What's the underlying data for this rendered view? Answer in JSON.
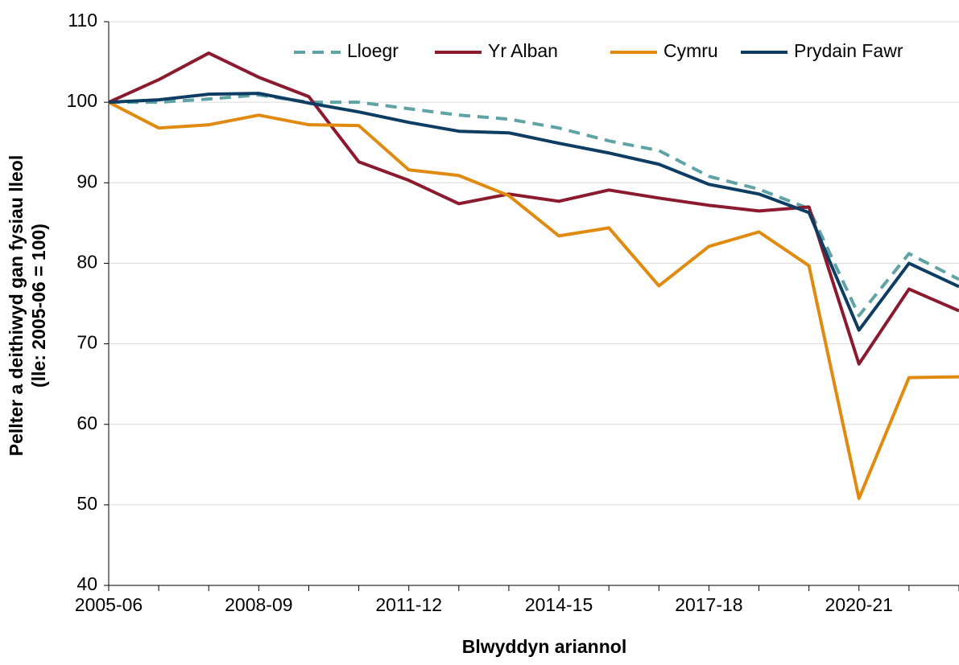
{
  "chart_data": {
    "type": "line",
    "x_label": "Blwyddyn ariannol",
    "y_label": [
      "Pellter a deithiwyd gan fysiau lleol",
      "(lle: 2005-06 = 100)"
    ],
    "categories": [
      "2005-06",
      null,
      null,
      "2008-09",
      null,
      null,
      "2011-12",
      null,
      null,
      "2014-15",
      null,
      null,
      "2017-18",
      null,
      null,
      "2020-21",
      null,
      null
    ],
    "ylim": [
      40,
      110
    ],
    "yticks": [
      40,
      50,
      60,
      70,
      80,
      90,
      100,
      110
    ],
    "grid": true,
    "legend": "top",
    "series": [
      {
        "name": "Lloegr",
        "color": "#5fa3a5",
        "dashed": true,
        "values": [
          100,
          100.0,
          100.4,
          100.9,
          100.0,
          100.0,
          99.2,
          98.4,
          97.9,
          96.8,
          95.2,
          94.0,
          90.8,
          89.2,
          86.8,
          73.5,
          81.2,
          78.0
        ]
      },
      {
        "name": "Yr Alban",
        "color": "#8b1a2e",
        "dashed": false,
        "values": [
          100,
          102.8,
          106.1,
          103.1,
          100.7,
          92.6,
          90.3,
          87.4,
          88.6,
          87.7,
          89.1,
          88.1,
          87.2,
          86.5,
          87.0,
          67.5,
          76.8,
          74.1
        ]
      },
      {
        "name": "Cymru",
        "color": "#e08a10",
        "dashed": false,
        "values": [
          100,
          96.8,
          97.2,
          98.4,
          97.2,
          97.1,
          91.6,
          90.9,
          88.4,
          83.4,
          84.4,
          77.2,
          82.1,
          83.9,
          79.7,
          50.8,
          65.8,
          65.9
        ]
      },
      {
        "name": "Prydain Fawr",
        "color": "#0d3d63",
        "dashed": false,
        "values": [
          100,
          100.3,
          101.0,
          101.1,
          99.9,
          98.8,
          97.5,
          96.4,
          96.2,
          94.9,
          93.7,
          92.3,
          89.8,
          88.6,
          86.3,
          71.7,
          80.0,
          77.1
        ]
      }
    ]
  }
}
